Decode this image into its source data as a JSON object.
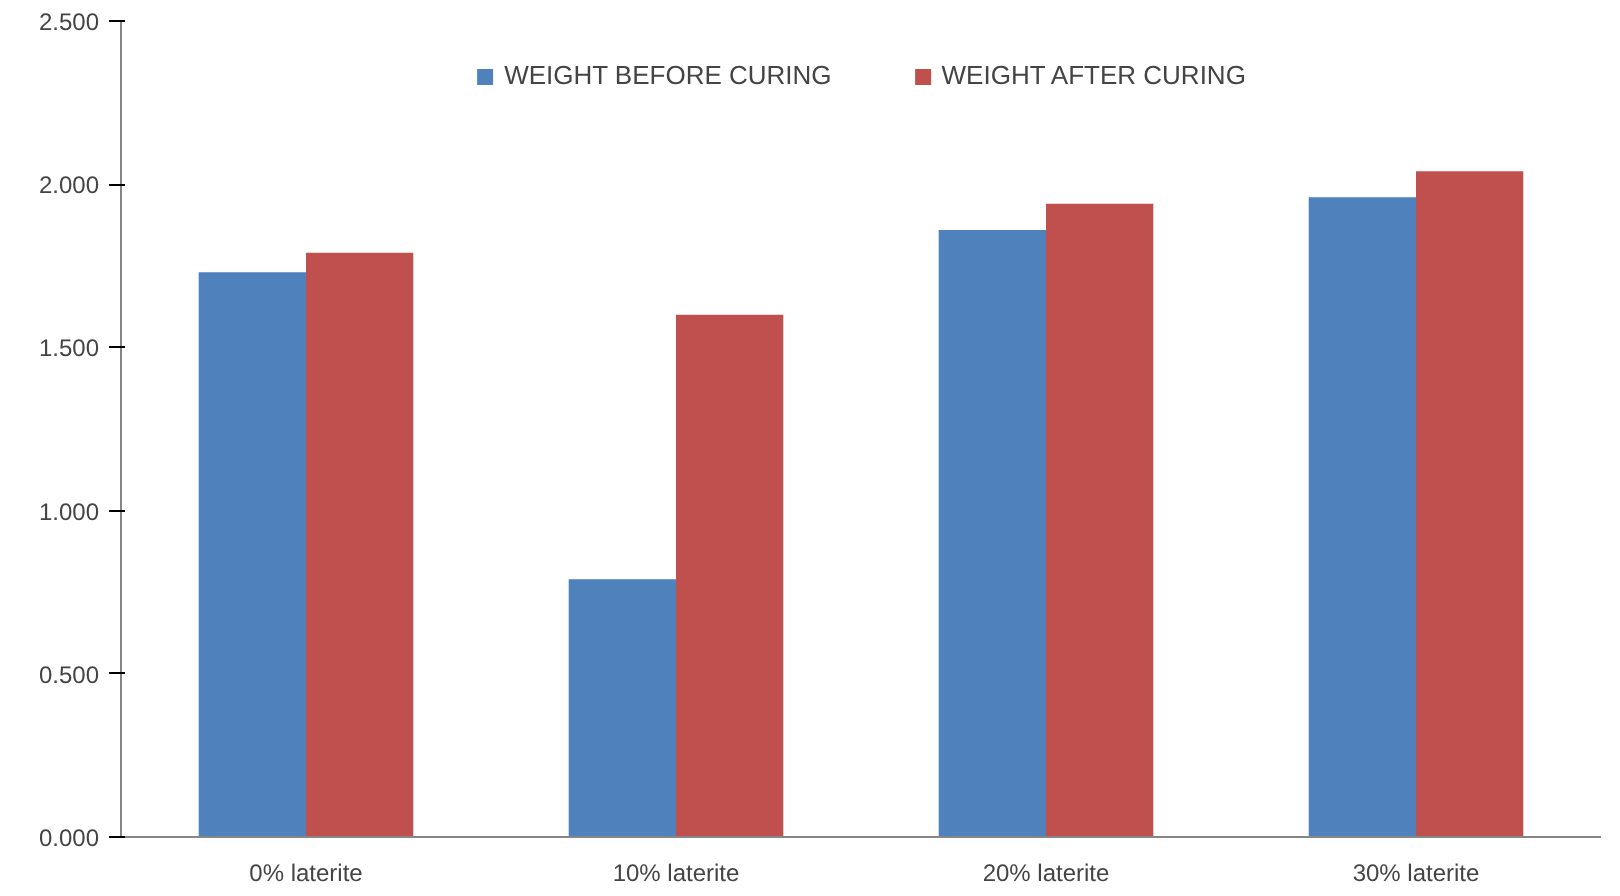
{
  "chart_data": {
    "type": "bar",
    "categories": [
      "0% laterite",
      "10% laterite",
      "20% laterite",
      "30% laterite"
    ],
    "series": [
      {
        "name": "WEIGHT BEFORE CURING",
        "color": "#4f81bd",
        "values": [
          1.73,
          0.79,
          1.86,
          1.96
        ]
      },
      {
        "name": "WEIGHT AFTER CURING",
        "color": "#c0504d",
        "values": [
          1.79,
          1.6,
          1.94,
          2.04
        ]
      }
    ],
    "ylim": [
      0,
      2.5
    ],
    "yticks": [
      {
        "value": 0,
        "label": "0.000"
      },
      {
        "value": 0.5,
        "label": "0.500"
      },
      {
        "value": 1,
        "label": "1.000"
      },
      {
        "value": 1.5,
        "label": "1.500"
      },
      {
        "value": 2,
        "label": "2.000"
      },
      {
        "value": 2.5,
        "label": "2.500"
      }
    ],
    "grid": false,
    "legend": "top"
  }
}
